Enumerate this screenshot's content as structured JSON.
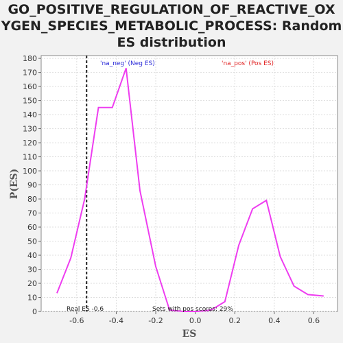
{
  "chart_data": {
    "type": "line",
    "title_lines": [
      "GO_POSITIVE_REGULATION_OF_REACTIVE_OX",
      "YGEN_SPECIES_METABOLIC_PROCESS: Random",
      "ES distribution"
    ],
    "xlabel": "ES",
    "ylabel": "P(ES)",
    "xlim": [
      -0.78,
      0.72
    ],
    "ylim": [
      0,
      182
    ],
    "x_ticks": [
      -0.6,
      -0.4,
      -0.2,
      0.0,
      0.2,
      0.4,
      0.6
    ],
    "x_tick_labels": [
      "-0.6",
      "-0.4",
      "-0.2",
      "0.0",
      "0.2",
      "0.4",
      "0.6"
    ],
    "y_ticks": [
      0,
      10,
      20,
      30,
      40,
      50,
      60,
      70,
      80,
      90,
      100,
      110,
      120,
      130,
      140,
      150,
      160,
      170,
      180
    ],
    "grid": true,
    "series": [
      {
        "color": "#ee3df0",
        "x": [
          -0.7,
          -0.63,
          -0.56,
          -0.49,
          -0.42,
          -0.35,
          -0.28,
          -0.2,
          -0.13,
          -0.06,
          0.01,
          0.08,
          0.15,
          0.22,
          0.29,
          0.36,
          0.43,
          0.5,
          0.57,
          0.65
        ],
        "y": [
          13,
          38,
          80,
          145,
          145,
          173,
          86,
          32,
          1,
          0,
          0,
          1,
          7,
          47,
          73,
          79,
          39,
          18,
          12,
          11
        ]
      }
    ],
    "legend": [
      {
        "label": "'na_neg' (Neg ES)",
        "color": "#2a2ad8"
      },
      {
        "label": "'na_pos' (Pos ES)",
        "color": "#e02020"
      }
    ],
    "real_es_x": -0.55,
    "annotations": {
      "real_es": "Real ES -0.6",
      "pos_scores": "Sets with pos scores: 29%"
    }
  }
}
